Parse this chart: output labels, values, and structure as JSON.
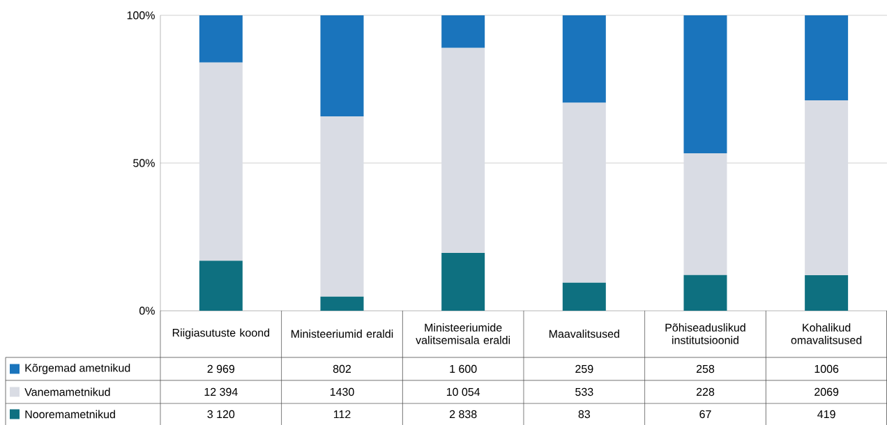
{
  "chart_data": {
    "type": "bar",
    "stacked": true,
    "categories": [
      "Riigiasutuste koond",
      "Ministeeriumid eraldi",
      "Ministeeriumide valitsemisala eraldi",
      "Maavalitsused",
      "Põhiseaduslikud institutsioonid",
      "Kohalikud omavalitsused"
    ],
    "series": [
      {
        "name": "Nooremametnikud",
        "color": "#0e7080",
        "values": [
          16.9,
          4.8,
          19.6,
          9.5,
          12.1,
          12.0
        ]
      },
      {
        "name": "Vanemametnikud",
        "color": "#d9dce4",
        "values": [
          67.1,
          61.0,
          69.4,
          60.9,
          41.2,
          59.2
        ]
      },
      {
        "name": "Kõrgemad ametnikud",
        "color": "#1a74bc",
        "values": [
          16.0,
          34.2,
          11.0,
          29.6,
          46.7,
          28.8
        ]
      }
    ],
    "annotations": [
      "2 969",
      "802",
      "1 600",
      "259",
      "258",
      "1006",
      "12 394",
      "1430",
      "10 054",
      "533",
      "228",
      "2069",
      "3 120",
      "112",
      "2 838",
      "83",
      "67",
      "419"
    ],
    "ylim": [
      0,
      100
    ],
    "yticks": [
      {
        "value": 0,
        "label": "0%"
      },
      {
        "value": 50,
        "label": "50%"
      },
      {
        "value": 100,
        "label": "100%"
      }
    ],
    "grid": "y",
    "legend": "bottom"
  }
}
